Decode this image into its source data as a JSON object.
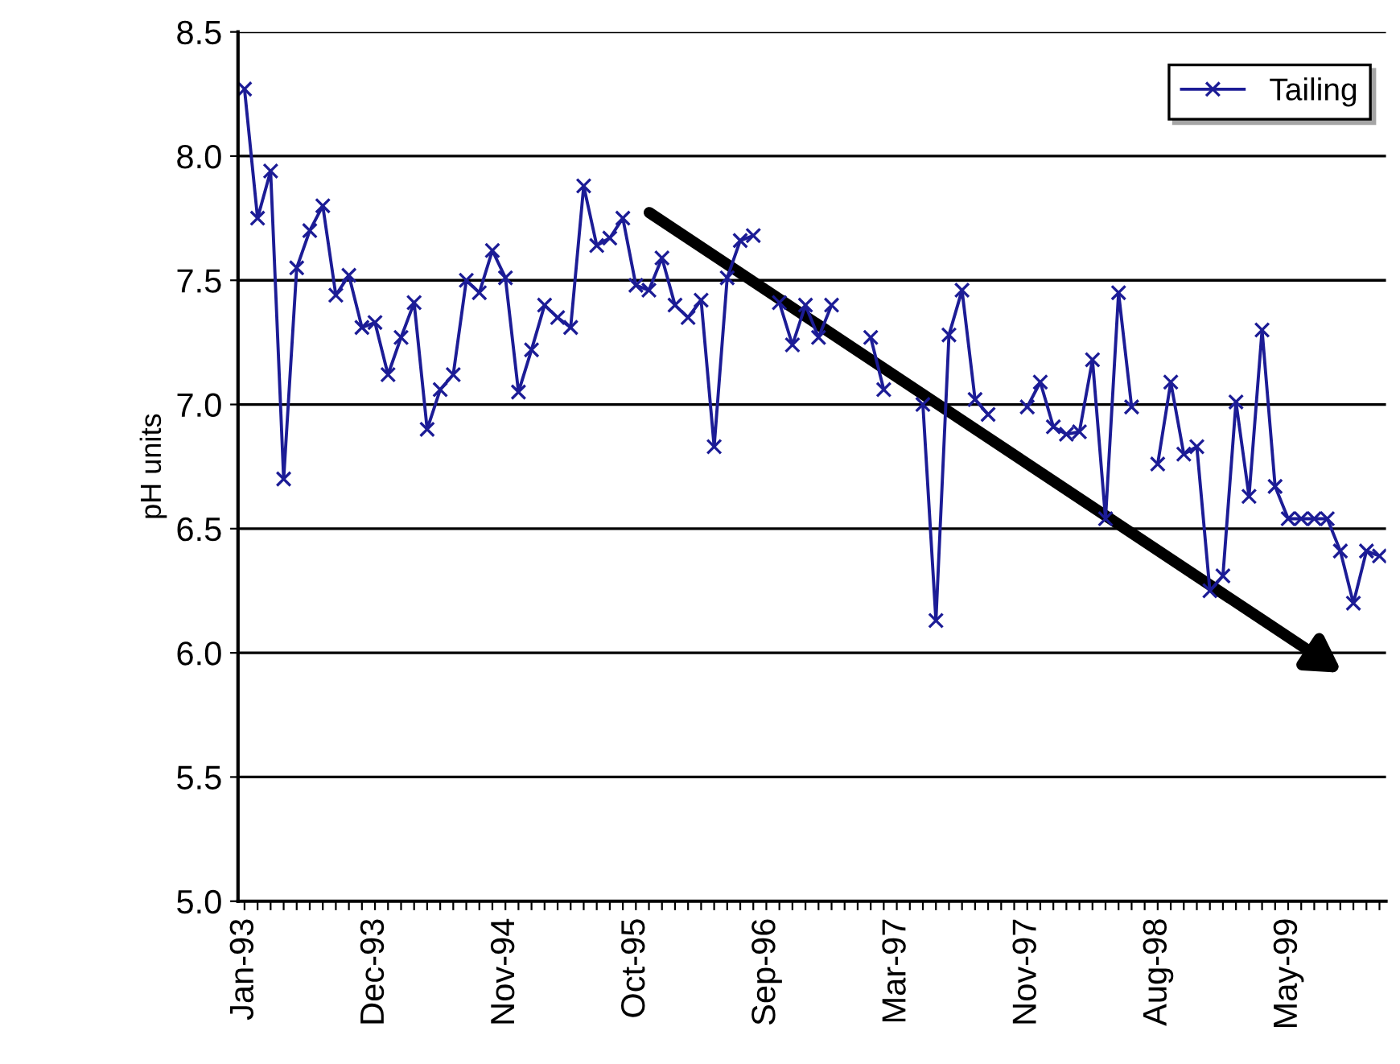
{
  "chart_data": {
    "type": "line",
    "ylabel": "pH units",
    "categories": [
      "Jan-93",
      null,
      null,
      null,
      null,
      null,
      null,
      null,
      null,
      null,
      "Dec-93",
      null,
      null,
      null,
      null,
      null,
      null,
      null,
      null,
      null,
      "Nov-94",
      null,
      null,
      null,
      null,
      null,
      null,
      null,
      null,
      null,
      "Oct-95",
      null,
      null,
      null,
      null,
      null,
      null,
      null,
      null,
      null,
      "Sep-96",
      null,
      null,
      null,
      null,
      null,
      null,
      null,
      null,
      null,
      "Mar-97",
      null,
      null,
      null,
      null,
      null,
      null,
      null,
      null,
      null,
      "Nov-97",
      null,
      null,
      null,
      null,
      null,
      null,
      null,
      null,
      null,
      "Aug-98",
      null,
      null,
      null,
      null,
      null,
      null,
      null,
      null,
      null,
      "May-99",
      null,
      null,
      null,
      null,
      null,
      null,
      null
    ],
    "series": [
      {
        "name": "Tailing",
        "color": "#1c1c96",
        "values": [
          8.27,
          7.75,
          7.94,
          6.7,
          7.55,
          7.7,
          7.8,
          7.44,
          7.52,
          7.31,
          7.33,
          7.12,
          7.27,
          7.41,
          6.9,
          7.06,
          7.12,
          7.5,
          7.45,
          7.62,
          7.51,
          7.05,
          7.22,
          7.4,
          7.35,
          7.31,
          7.88,
          7.64,
          7.67,
          7.75,
          7.48,
          7.46,
          7.59,
          7.4,
          7.35,
          7.42,
          6.83,
          7.51,
          7.66,
          7.68,
          null,
          7.41,
          7.24,
          7.4,
          7.27,
          7.4,
          null,
          null,
          7.27,
          7.06,
          null,
          null,
          7.0,
          6.13,
          7.28,
          7.46,
          7.02,
          6.96,
          null,
          null,
          6.99,
          7.09,
          6.91,
          6.88,
          6.89,
          7.18,
          6.54,
          7.45,
          6.99,
          null,
          6.76,
          7.09,
          6.8,
          6.83,
          6.25,
          6.31,
          7.01,
          6.63,
          7.3,
          6.67,
          6.54,
          6.54,
          6.54,
          6.54,
          6.41,
          6.2,
          6.41,
          6.39
        ]
      }
    ],
    "ylim": [
      5.0,
      8.5
    ],
    "yticks": [
      {
        "value": 5.0,
        "label": "5.0"
      },
      {
        "value": 5.5,
        "label": "5.5"
      },
      {
        "value": 6.0,
        "label": "6.0"
      },
      {
        "value": 6.5,
        "label": "6.5"
      },
      {
        "value": 7.0,
        "label": "7.0"
      },
      {
        "value": 7.5,
        "label": "7.5"
      },
      {
        "value": 8.0,
        "label": "8.0"
      },
      {
        "value": 8.5,
        "label": "8.5"
      }
    ],
    "grid": "y",
    "legend": "top right",
    "marker": "cross",
    "line_style": "solid"
  }
}
